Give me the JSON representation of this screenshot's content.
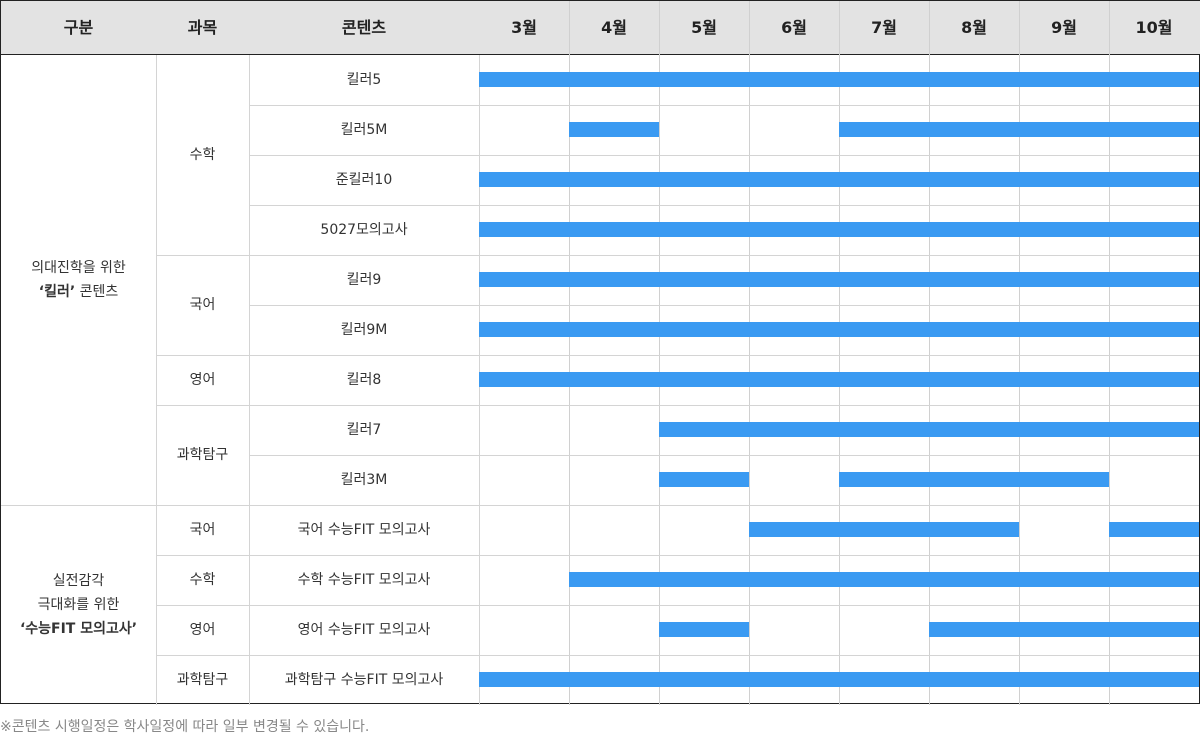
{
  "headers": {
    "category": "구분",
    "subject": "과목",
    "content": "콘텐츠",
    "months": [
      "3월",
      "4월",
      "5월",
      "6월",
      "7월",
      "8월",
      "9월",
      "10월"
    ]
  },
  "sections": [
    {
      "category_line1": "의대진학을 위한",
      "category_bold": "‘킬러’",
      "category_rest": " 콘텐츠",
      "subjects": [
        {
          "name": "수학",
          "rows": 4
        },
        {
          "name": "국어",
          "rows": 2
        },
        {
          "name": "영어",
          "rows": 1
        },
        {
          "name": "과학탐구",
          "rows": 2
        }
      ]
    },
    {
      "category_line1": "실전감각",
      "category_line2": "극대화를 위한",
      "category_bold": "‘수능FIT 모의고사’",
      "subjects": [
        {
          "name": "국어",
          "rows": 1
        },
        {
          "name": "수학",
          "rows": 1
        },
        {
          "name": "영어",
          "rows": 1
        },
        {
          "name": "과학탐구",
          "rows": 1
        }
      ]
    }
  ],
  "rows": [
    {
      "content": "킬러5",
      "active": [
        1,
        1,
        1,
        1,
        1,
        1,
        1,
        1
      ]
    },
    {
      "content": "킬러5M",
      "active": [
        0,
        1,
        0,
        0,
        1,
        1,
        1,
        1
      ]
    },
    {
      "content": "준킬러10",
      "active": [
        1,
        1,
        1,
        1,
        1,
        1,
        1,
        1
      ]
    },
    {
      "content": "5027모의고사",
      "active": [
        1,
        1,
        1,
        1,
        1,
        1,
        1,
        1
      ]
    },
    {
      "content": "킬러9",
      "active": [
        1,
        1,
        1,
        1,
        1,
        1,
        1,
        1
      ]
    },
    {
      "content": "킬러9M",
      "active": [
        1,
        1,
        1,
        1,
        1,
        1,
        1,
        1
      ]
    },
    {
      "content": "킬러8",
      "active": [
        1,
        1,
        1,
        1,
        1,
        1,
        1,
        1
      ]
    },
    {
      "content": "킬러7",
      "active": [
        0,
        0,
        1,
        1,
        1,
        1,
        1,
        1
      ]
    },
    {
      "content": "킬러3M",
      "active": [
        0,
        0,
        1,
        0,
        1,
        1,
        1,
        0
      ]
    },
    {
      "content": "국어 수능FIT 모의고사",
      "active": [
        0,
        0,
        0,
        1,
        1,
        1,
        0,
        1
      ]
    },
    {
      "content": "수학 수능FIT 모의고사",
      "active": [
        0,
        1,
        1,
        1,
        1,
        1,
        1,
        1
      ]
    },
    {
      "content": "영어 수능FIT 모의고사",
      "active": [
        0,
        0,
        1,
        0,
        0,
        1,
        1,
        1
      ]
    },
    {
      "content": "과학탐구 수능FIT 모의고사",
      "active": [
        1,
        1,
        1,
        1,
        1,
        1,
        1,
        1
      ]
    }
  ],
  "colors": {
    "bar": "#3a9af2",
    "header_bg": "#e3e3e3"
  },
  "footnote": "※콘텐츠 시행일정은 학사일정에 따라 일부 변경될 수 있습니다."
}
